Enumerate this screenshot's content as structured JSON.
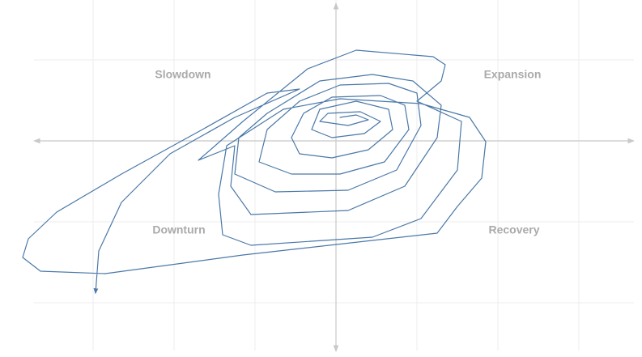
{
  "chart_data": {
    "type": "line",
    "quadrant_labels": [
      "Slowdown",
      "Expansion",
      "Downturn",
      "Recovery"
    ],
    "color": "#4a78a8",
    "grid": true,
    "xlim": [
      -4.15,
      3.78
    ],
    "ylim": [
      -2.67,
      1.74
    ],
    "xticks": [
      -3,
      -2,
      -1,
      0,
      1,
      2,
      3
    ],
    "yticks": [
      -2,
      -1,
      0,
      1
    ],
    "x": [
      0.05,
      0.25,
      0.4,
      0.15,
      -0.2,
      -0.1,
      0.3,
      0.55,
      0.35,
      -0.05,
      -0.3,
      -0.2,
      0.25,
      0.65,
      0.7,
      0.4,
      -0.05,
      -0.45,
      -0.55,
      -0.4,
      -0.05,
      0.55,
      0.85,
      0.9,
      0.6,
      0.05,
      -0.55,
      -0.95,
      -0.85,
      -0.45,
      0.05,
      0.65,
      1.0,
      1.05,
      0.75,
      0.15,
      -0.75,
      -1.25,
      -1.2,
      -0.85,
      -0.2,
      0.45,
      0.95,
      1.3,
      1.25,
      0.85,
      0.15,
      -1.05,
      -1.3,
      -1.25,
      -1.7,
      -1.15,
      -0.35,
      0.25,
      1.2,
      1.35,
      1.3,
      1.0,
      1.55,
      1.5,
      1.05,
      0.45,
      -1.05,
      -1.4,
      -1.45,
      -1.35,
      -0.65,
      0.05,
      1.05,
      1.65,
      1.85,
      1.8,
      1.5,
      1.25,
      -1.15,
      -2.85,
      -3.65,
      -3.87,
      -3.8,
      -3.45,
      -2.65,
      -1.65,
      -0.85,
      -0.45,
      -1.25,
      -2.05,
      -2.65,
      -2.93,
      -2.97
    ],
    "y": [
      0.29,
      0.32,
      0.26,
      0.19,
      0.24,
      0.34,
      0.36,
      0.24,
      0.09,
      0.04,
      0.14,
      0.39,
      0.49,
      0.39,
      0.14,
      -0.11,
      -0.21,
      -0.16,
      0.04,
      0.34,
      0.54,
      0.56,
      0.44,
      0.14,
      -0.26,
      -0.41,
      -0.41,
      -0.26,
      0.14,
      0.49,
      0.69,
      0.71,
      0.59,
      0.19,
      -0.36,
      -0.61,
      -0.63,
      -0.41,
      0.04,
      0.34,
      0.74,
      0.82,
      0.74,
      0.44,
      0.04,
      -0.56,
      -0.86,
      -0.91,
      -0.56,
      -0.06,
      -0.24,
      0.24,
      0.89,
      1.12,
      1.04,
      0.94,
      0.74,
      0.49,
      0.24,
      -0.36,
      -0.96,
      -1.19,
      -1.29,
      -1.16,
      -0.66,
      -0.06,
      0.39,
      0.52,
      0.46,
      0.29,
      -0.01,
      -0.46,
      -0.81,
      -1.14,
      -1.41,
      -1.64,
      -1.61,
      -1.44,
      -1.21,
      -0.88,
      -0.41,
      0.14,
      0.59,
      0.64,
      0.29,
      -0.16,
      -0.76,
      -1.36,
      -1.88
    ]
  }
}
